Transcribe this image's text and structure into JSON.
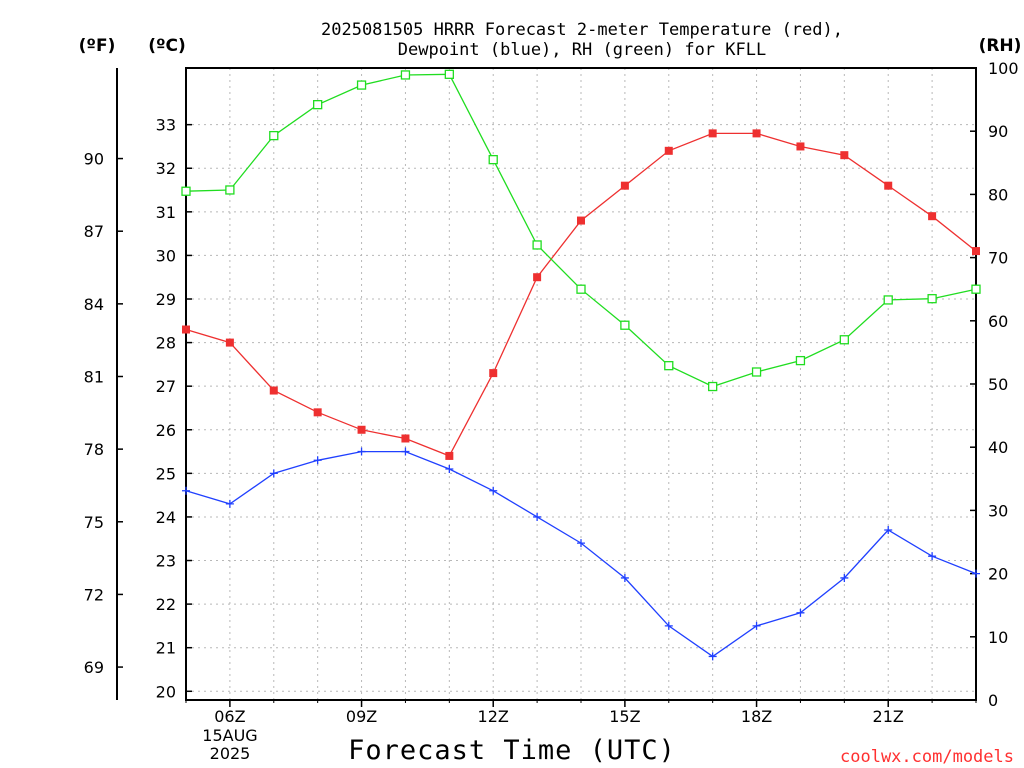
{
  "chart_data": {
    "type": "line",
    "title_lines": [
      "2025081505 HRRR Forecast 2-meter Temperature (red),",
      "Dewpoint (blue), RH (green) for KFLL"
    ],
    "units": {
      "fahrenheit": "(ºF)",
      "celsius": "(ºC)",
      "rh": "(RH)"
    },
    "xlabel": "Forecast Time (UTC)",
    "credit": "coolwx.com/models",
    "date_label": [
      "15AUG",
      "2025"
    ],
    "x_hours": [
      5,
      6,
      7,
      8,
      9,
      10,
      11,
      12,
      13,
      14,
      15,
      16,
      17,
      18,
      19,
      20,
      21,
      22,
      23
    ],
    "x_ticks": [
      {
        "hour": 6,
        "label": "06Z"
      },
      {
        "hour": 9,
        "label": "09Z"
      },
      {
        "hour": 12,
        "label": "12Z"
      },
      {
        "hour": 15,
        "label": "15Z"
      },
      {
        "hour": 18,
        "label": "18Z"
      },
      {
        "hour": 21,
        "label": "21Z"
      }
    ],
    "xlim": [
      5,
      23
    ],
    "ylim_c": [
      19.8,
      34.3
    ],
    "ylim_rh": [
      0,
      100
    ],
    "yticks_c": [
      "20",
      "21",
      "22",
      "23",
      "24",
      "25",
      "26",
      "27",
      "28",
      "29",
      "30",
      "31",
      "32",
      "33"
    ],
    "yticks_f": [
      "69",
      "72",
      "75",
      "78",
      "81",
      "84",
      "87",
      "90"
    ],
    "yticks_rh": [
      "0",
      "10",
      "20",
      "30",
      "40",
      "50",
      "60",
      "70",
      "80",
      "90",
      "100"
    ],
    "grid": true,
    "series": [
      {
        "name": "Temperature",
        "axis": "c",
        "color": "#ee3030",
        "marker": "filled-square",
        "values": [
          28.3,
          28.0,
          26.9,
          26.4,
          26.0,
          25.8,
          25.4,
          27.3,
          29.5,
          30.8,
          31.6,
          32.4,
          32.8,
          32.8,
          32.5,
          32.3,
          31.6,
          30.9,
          30.1
        ]
      },
      {
        "name": "Dewpoint",
        "axis": "c",
        "color": "#2040ff",
        "marker": "plus",
        "values": [
          24.6,
          24.3,
          25.0,
          25.3,
          25.5,
          25.5,
          25.1,
          24.6,
          24.0,
          23.4,
          22.6,
          21.5,
          20.8,
          21.5,
          21.8,
          22.6,
          23.7,
          23.1,
          22.7
        ]
      },
      {
        "name": "RH",
        "axis": "rh",
        "color": "#20dd20",
        "marker": "open-square",
        "values": [
          80.5,
          80.7,
          89.3,
          94.2,
          97.3,
          98.9,
          99.0,
          85.5,
          72.0,
          65.0,
          59.3,
          52.9,
          49.6,
          51.9,
          53.7,
          57.0,
          63.3,
          63.5,
          65.0
        ]
      }
    ]
  }
}
